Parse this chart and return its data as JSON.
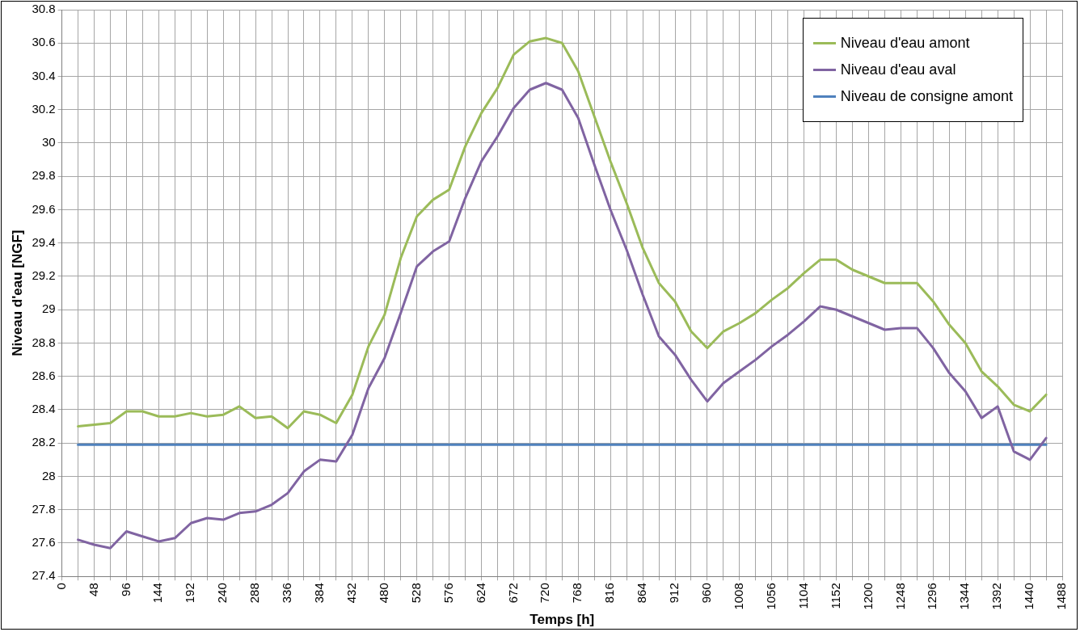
{
  "chart_data": {
    "type": "line",
    "xlabel": "Temps [h]",
    "ylabel": "Niveau d'eau [NGF]",
    "xlim": [
      0,
      1488
    ],
    "xticks": [
      0,
      {
        "value": 24,
        "label": null
      },
      48,
      {
        "value": 72,
        "label": null
      },
      96,
      {
        "value": 120,
        "label": null
      },
      144,
      {
        "value": 168,
        "label": null
      },
      192,
      {
        "value": 216,
        "label": null
      },
      240,
      {
        "value": 264,
        "label": null
      },
      288,
      {
        "value": 312,
        "label": null
      },
      336,
      {
        "value": 360,
        "label": null
      },
      384,
      {
        "value": 408,
        "label": null
      },
      432,
      {
        "value": 456,
        "label": null
      },
      480,
      {
        "value": 504,
        "label": null
      },
      528,
      {
        "value": 552,
        "label": null
      },
      576,
      {
        "value": 600,
        "label": null
      },
      624,
      {
        "value": 648,
        "label": null
      },
      672,
      {
        "value": 696,
        "label": null
      },
      720,
      {
        "value": 744,
        "label": null
      },
      768,
      {
        "value": 792,
        "label": null
      },
      816,
      {
        "value": 840,
        "label": null
      },
      864,
      {
        "value": 888,
        "label": null
      },
      912,
      {
        "value": 936,
        "label": null
      },
      960,
      {
        "value": 984,
        "label": null
      },
      1008,
      {
        "value": 1032,
        "label": null
      },
      1056,
      {
        "value": 1080,
        "label": null
      },
      1104,
      {
        "value": 1128,
        "label": null
      },
      1152,
      {
        "value": 1176,
        "label": null
      },
      1200,
      {
        "value": 1224,
        "label": null
      },
      1248,
      {
        "value": 1272,
        "label": null
      },
      1296,
      {
        "value": 1320,
        "label": null
      },
      1344,
      {
        "value": 1368,
        "label": null
      },
      1392,
      {
        "value": 1416,
        "label": null
      },
      1440,
      {
        "value": 1464,
        "label": null
      },
      1488
    ],
    "ylim": [
      27.4,
      30.8
    ],
    "yticks": [
      27.4,
      27.6,
      27.8,
      28,
      28.2,
      28.4,
      28.6,
      28.8,
      29,
      29.2,
      29.4,
      29.6,
      29.8,
      30,
      30.2,
      30.4,
      30.6,
      30.8
    ],
    "grid": true,
    "legend": "top right",
    "marker": "none",
    "line_style": "solid",
    "x": [
      24,
      48,
      72,
      96,
      120,
      144,
      168,
      192,
      216,
      240,
      264,
      288,
      312,
      336,
      360,
      384,
      408,
      432,
      456,
      480,
      504,
      528,
      552,
      576,
      600,
      624,
      648,
      672,
      696,
      720,
      744,
      768,
      792,
      816,
      840,
      864,
      888,
      912,
      936,
      960,
      984,
      1008,
      1032,
      1056,
      1080,
      1104,
      1128,
      1152,
      1176,
      1200,
      1224,
      1248,
      1272,
      1296,
      1320,
      1344,
      1368,
      1392,
      1416,
      1440,
      1464
    ],
    "series": [
      {
        "name": "Niveau d'eau amont",
        "color": "#9bbb59",
        "values": [
          28.3,
          28.31,
          28.32,
          28.39,
          28.39,
          28.36,
          28.36,
          28.38,
          28.36,
          28.37,
          28.42,
          28.35,
          28.36,
          28.29,
          28.39,
          28.37,
          28.32,
          28.49,
          28.78,
          28.97,
          29.31,
          29.56,
          29.66,
          29.72,
          29.98,
          30.18,
          30.33,
          30.53,
          30.61,
          30.63,
          30.6,
          30.43,
          30.16,
          29.89,
          29.64,
          29.37,
          29.16,
          29.05,
          28.87,
          28.77,
          28.87,
          28.92,
          28.98,
          29.06,
          29.13,
          29.22,
          29.3,
          29.3,
          29.24,
          29.2,
          29.16,
          29.16,
          29.16,
          29.05,
          28.91,
          28.8,
          28.63,
          28.54,
          28.43,
          28.39,
          28.49
        ]
      },
      {
        "name": "Niveau d'eau aval",
        "color": "#8064a2",
        "values": [
          27.62,
          27.59,
          27.57,
          27.67,
          27.64,
          27.61,
          27.63,
          27.72,
          27.75,
          27.74,
          27.78,
          27.79,
          27.83,
          27.9,
          28.03,
          28.1,
          28.09,
          28.25,
          28.53,
          28.71,
          28.98,
          29.26,
          29.35,
          29.41,
          29.67,
          29.89,
          30.04,
          30.21,
          30.32,
          30.36,
          30.32,
          30.15,
          29.87,
          29.6,
          29.36,
          29.09,
          28.84,
          28.73,
          28.58,
          28.45,
          28.56,
          28.63,
          28.7,
          28.78,
          28.85,
          28.93,
          29.02,
          29.0,
          28.96,
          28.92,
          28.88,
          28.89,
          28.89,
          28.77,
          28.62,
          28.51,
          28.35,
          28.42,
          28.15,
          28.1,
          28.23
        ]
      },
      {
        "name": "Niveau de consigne amont",
        "color": "#4f81bd",
        "x": [
          24,
          1464
        ],
        "values": [
          28.19,
          28.19
        ]
      }
    ]
  }
}
